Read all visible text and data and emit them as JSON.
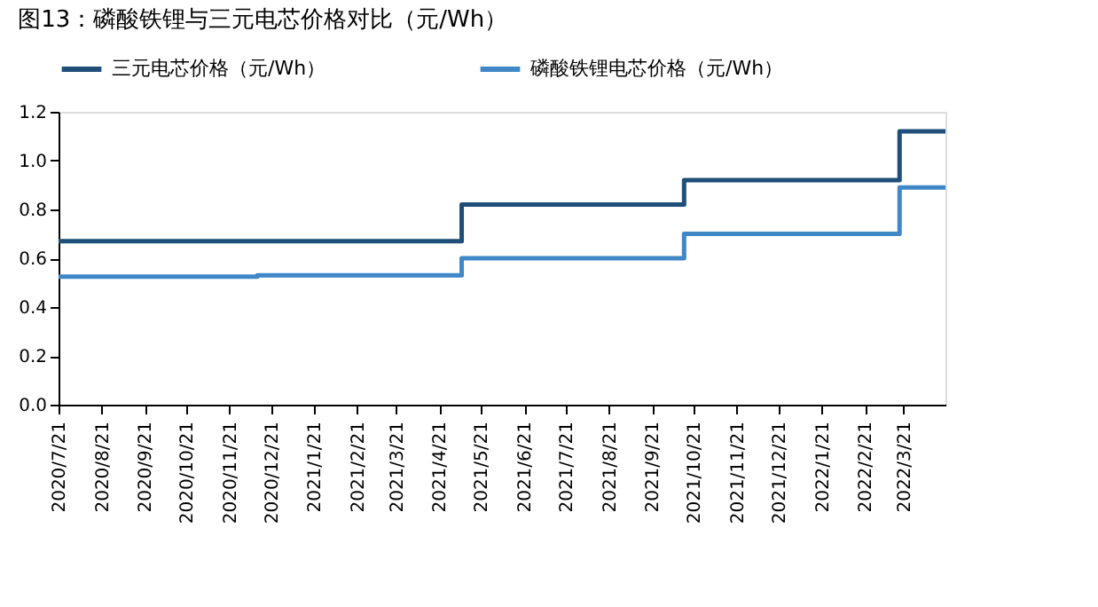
{
  "chart_data": {
    "type": "step",
    "title": "图13：磷酸铁锂与三元电芯价格对比（元/Wh）",
    "series": [
      {
        "name": "三元电芯价格（元/Wh）",
        "color": "#1f4e79",
        "x": [
          "2020-07-21",
          "2021-05-07",
          "2021-10-14",
          "2022-03-18",
          "2022-04-20"
        ],
        "values": [
          0.67,
          0.82,
          0.92,
          1.12,
          1.12
        ]
      },
      {
        "name": "磷酸铁锂电芯价格（元/Wh）",
        "color": "#3f87c6",
        "x": [
          "2020-07-21",
          "2020-12-11",
          "2021-05-07",
          "2021-10-14",
          "2022-03-18",
          "2022-04-20"
        ],
        "values": [
          0.525,
          0.53,
          0.6,
          0.7,
          0.89,
          0.89
        ]
      }
    ],
    "xlim": [
      "2020-07-21",
      "2022-04-20"
    ],
    "xticks": [
      {
        "value": "2020-07-21",
        "label": "2020/7/21"
      },
      {
        "value": "2020-08-21",
        "label": "2020/8/21"
      },
      {
        "value": "2020-09-21",
        "label": "2020/9/21"
      },
      {
        "value": "2020-10-21",
        "label": "2020/10/21"
      },
      {
        "value": "2020-11-21",
        "label": "2020/11/21"
      },
      {
        "value": "2020-12-21",
        "label": "2020/12/21"
      },
      {
        "value": "2021-01-21",
        "label": "2021/1/21"
      },
      {
        "value": "2021-02-21",
        "label": "2021/2/21"
      },
      {
        "value": "2021-03-21",
        "label": "2021/3/21"
      },
      {
        "value": "2021-04-21",
        "label": "2021/4/21"
      },
      {
        "value": "2021-05-21",
        "label": "2021/5/21"
      },
      {
        "value": "2021-06-21",
        "label": "2021/6/21"
      },
      {
        "value": "2021-07-21",
        "label": "2021/7/21"
      },
      {
        "value": "2021-08-21",
        "label": "2021/8/21"
      },
      {
        "value": "2021-09-21",
        "label": "2021/9/21"
      },
      {
        "value": "2021-10-21",
        "label": "2021/10/21"
      },
      {
        "value": "2021-11-21",
        "label": "2021/11/21"
      },
      {
        "value": "2021-12-21",
        "label": "2021/12/21"
      },
      {
        "value": "2022-01-21",
        "label": "2022/1/21"
      },
      {
        "value": "2022-02-21",
        "label": "2022/2/21"
      },
      {
        "value": "2022-03-21",
        "label": "2022/3/21"
      }
    ],
    "ylim": [
      0,
      1.2
    ],
    "yticks": [
      {
        "value": 0,
        "label": "0.0"
      },
      {
        "value": 0.2,
        "label": "0.2"
      },
      {
        "value": 0.4,
        "label": "0.4"
      },
      {
        "value": 0.6,
        "label": "0.6"
      },
      {
        "value": 0.8,
        "label": "0.8"
      },
      {
        "value": 1.0,
        "label": "1.0"
      },
      {
        "value": 1.2,
        "label": "1.2"
      }
    ],
    "grid": false,
    "legend": "top",
    "line_style": "solid",
    "marker": "none"
  }
}
